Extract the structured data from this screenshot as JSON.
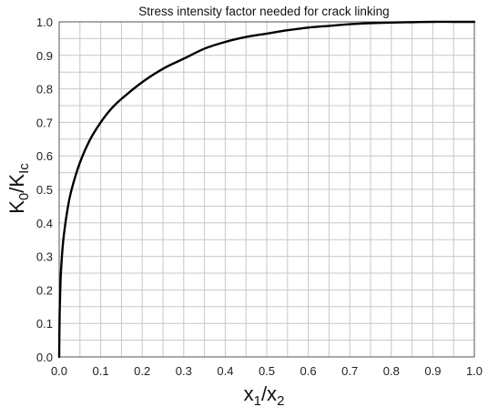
{
  "chart_data": {
    "type": "line",
    "title": "Stress intensity factor needed for crack linking",
    "xlabel": {
      "main": "x",
      "sub1": "1",
      "slash": "/x",
      "sub2": "2"
    },
    "ylabel": {
      "main": "K",
      "sub1": "0",
      "slash": "/K",
      "sub2": "Ic"
    },
    "xlim": [
      0,
      1
    ],
    "ylim": [
      0,
      1
    ],
    "grid": true,
    "minor_grid_step": 0.05,
    "x_ticks": [
      "0.0",
      "0.1",
      "0.2",
      "0.3",
      "0.4",
      "0.5",
      "0.6",
      "0.7",
      "0.8",
      "0.9",
      "1.0"
    ],
    "y_ticks": [
      "0.0",
      "0.1",
      "0.2",
      "0.3",
      "0.4",
      "0.5",
      "0.6",
      "0.7",
      "0.8",
      "0.9",
      "1.0"
    ],
    "series": [
      {
        "color": "#000000",
        "x": [
          0,
          0.001,
          0.003,
          0.005,
          0.01,
          0.02,
          0.03,
          0.05,
          0.075,
          0.1,
          0.125,
          0.15,
          0.2,
          0.25,
          0.3,
          0.35,
          0.4,
          0.45,
          0.5,
          0.55,
          0.6,
          0.65,
          0.7,
          0.75,
          0.8,
          0.85,
          0.9,
          0.95,
          1.0
        ],
        "y": [
          0,
          0.12,
          0.22,
          0.27,
          0.35,
          0.44,
          0.5,
          0.58,
          0.65,
          0.7,
          0.74,
          0.77,
          0.82,
          0.86,
          0.89,
          0.92,
          0.94,
          0.955,
          0.965,
          0.975,
          0.983,
          0.988,
          0.993,
          0.996,
          0.998,
          0.999,
          1.0,
          1.0,
          1.0
        ]
      }
    ]
  }
}
